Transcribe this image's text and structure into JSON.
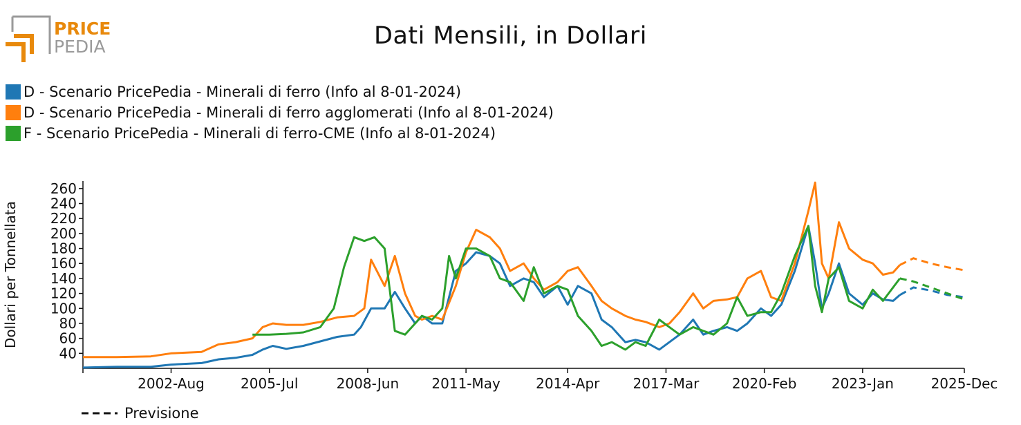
{
  "header": {
    "logo_top": "PRICE",
    "logo_bottom": "PEDIA",
    "title": "Dati Mensili, in Dollari"
  },
  "colors": {
    "s1": "#1f77b4",
    "s2": "#ff7f0e",
    "s3": "#2ca02c",
    "logo_orange": "#e8890c",
    "logo_gray": "#9a9a9a"
  },
  "legend": [
    {
      "label": "D - Scenario PricePedia - Minerali di ferro (Info al 8-01-2024)",
      "color": "#1f77b4"
    },
    {
      "label": "D - Scenario PricePedia - Minerali di ferro agglomerati (Info al 8-01-2024)",
      "color": "#ff7f0e"
    },
    {
      "label": "F - Scenario PricePedia - Minerali di ferro-CME (Info al 8-01-2024)",
      "color": "#2ca02c"
    }
  ],
  "forecast_label": "Previsione",
  "chart_data": {
    "type": "line",
    "title": "Dati Mensili, in Dollari",
    "ylabel": "Dollari per Tonnellata",
    "xlabel": "",
    "ylim": [
      20,
      270
    ],
    "xlim": [
      2000.0,
      2026.0
    ],
    "yticks": [
      40,
      60,
      80,
      100,
      120,
      140,
      160,
      180,
      200,
      220,
      240,
      260
    ],
    "xticks": [
      {
        "label": "2002-Aug",
        "x": 2002.6
      },
      {
        "label": "2005-Jul",
        "x": 2005.5
      },
      {
        "label": "2008-Jun",
        "x": 2008.4
      },
      {
        "label": "2011-May",
        "x": 2011.3
      },
      {
        "label": "2014-Apr",
        "x": 2014.3
      },
      {
        "label": "2017-Mar",
        "x": 2017.2
      },
      {
        "label": "2020-Feb",
        "x": 2020.1
      },
      {
        "label": "2023-Jan",
        "x": 2023.0
      },
      {
        "label": "2025-Dec",
        "x": 2026.0
      }
    ],
    "series": [
      {
        "name": "D - Scenario PricePedia - Minerali di ferro (Info al 8-01-2024)",
        "color": "#1f77b4",
        "points": [
          [
            2000.0,
            21
          ],
          [
            2001.0,
            22
          ],
          [
            2002.0,
            22
          ],
          [
            2002.6,
            25
          ],
          [
            2003.5,
            27
          ],
          [
            2004.0,
            32
          ],
          [
            2004.5,
            34
          ],
          [
            2005.0,
            38
          ],
          [
            2005.3,
            45
          ],
          [
            2005.6,
            50
          ],
          [
            2006.0,
            46
          ],
          [
            2006.5,
            50
          ],
          [
            2007.0,
            56
          ],
          [
            2007.5,
            62
          ],
          [
            2008.0,
            65
          ],
          [
            2008.2,
            75
          ],
          [
            2008.5,
            100
          ],
          [
            2008.9,
            100
          ],
          [
            2009.2,
            122
          ],
          [
            2009.5,
            100
          ],
          [
            2009.8,
            80
          ],
          [
            2010.0,
            90
          ],
          [
            2010.3,
            80
          ],
          [
            2010.6,
            80
          ],
          [
            2011.0,
            150
          ],
          [
            2011.3,
            160
          ],
          [
            2011.6,
            175
          ],
          [
            2012.0,
            170
          ],
          [
            2012.3,
            160
          ],
          [
            2012.6,
            130
          ],
          [
            2013.0,
            140
          ],
          [
            2013.3,
            135
          ],
          [
            2013.6,
            115
          ],
          [
            2014.0,
            130
          ],
          [
            2014.3,
            105
          ],
          [
            2014.6,
            130
          ],
          [
            2015.0,
            120
          ],
          [
            2015.3,
            85
          ],
          [
            2015.6,
            75
          ],
          [
            2016.0,
            55
          ],
          [
            2016.3,
            58
          ],
          [
            2016.6,
            55
          ],
          [
            2017.0,
            45
          ],
          [
            2017.3,
            55
          ],
          [
            2017.6,
            65
          ],
          [
            2018.0,
            85
          ],
          [
            2018.3,
            65
          ],
          [
            2018.6,
            70
          ],
          [
            2019.0,
            75
          ],
          [
            2019.3,
            70
          ],
          [
            2019.6,
            80
          ],
          [
            2020.0,
            100
          ],
          [
            2020.3,
            90
          ],
          [
            2020.6,
            105
          ],
          [
            2021.0,
            150
          ],
          [
            2021.4,
            210
          ],
          [
            2021.6,
            160
          ],
          [
            2021.8,
            100
          ],
          [
            2022.0,
            120
          ],
          [
            2022.3,
            160
          ],
          [
            2022.6,
            120
          ],
          [
            2023.0,
            105
          ],
          [
            2023.3,
            120
          ],
          [
            2023.6,
            112
          ],
          [
            2023.9,
            110
          ],
          [
            2024.1,
            118
          ]
        ],
        "forecast": [
          [
            2024.1,
            118
          ],
          [
            2024.5,
            128
          ],
          [
            2025.0,
            124
          ],
          [
            2025.5,
            118
          ],
          [
            2026.0,
            115
          ]
        ]
      },
      {
        "name": "D - Scenario PricePedia - Minerali di ferro agglomerati (Info al 8-01-2024)",
        "color": "#ff7f0e",
        "points": [
          [
            2000.0,
            35
          ],
          [
            2001.0,
            35
          ],
          [
            2002.0,
            36
          ],
          [
            2002.6,
            40
          ],
          [
            2003.5,
            42
          ],
          [
            2004.0,
            52
          ],
          [
            2004.5,
            55
          ],
          [
            2005.0,
            60
          ],
          [
            2005.3,
            75
          ],
          [
            2005.6,
            80
          ],
          [
            2006.0,
            78
          ],
          [
            2006.5,
            78
          ],
          [
            2007.0,
            82
          ],
          [
            2007.5,
            88
          ],
          [
            2008.0,
            90
          ],
          [
            2008.3,
            100
          ],
          [
            2008.5,
            165
          ],
          [
            2008.9,
            130
          ],
          [
            2009.2,
            170
          ],
          [
            2009.5,
            120
          ],
          [
            2009.8,
            90
          ],
          [
            2010.0,
            85
          ],
          [
            2010.3,
            90
          ],
          [
            2010.6,
            85
          ],
          [
            2011.0,
            130
          ],
          [
            2011.3,
            175
          ],
          [
            2011.6,
            205
          ],
          [
            2012.0,
            195
          ],
          [
            2012.3,
            180
          ],
          [
            2012.6,
            150
          ],
          [
            2013.0,
            160
          ],
          [
            2013.3,
            140
          ],
          [
            2013.6,
            125
          ],
          [
            2014.0,
            135
          ],
          [
            2014.3,
            150
          ],
          [
            2014.6,
            155
          ],
          [
            2015.0,
            130
          ],
          [
            2015.3,
            110
          ],
          [
            2015.6,
            100
          ],
          [
            2016.0,
            90
          ],
          [
            2016.3,
            85
          ],
          [
            2016.6,
            82
          ],
          [
            2017.0,
            75
          ],
          [
            2017.3,
            80
          ],
          [
            2017.6,
            95
          ],
          [
            2018.0,
            120
          ],
          [
            2018.3,
            100
          ],
          [
            2018.6,
            110
          ],
          [
            2019.0,
            112
          ],
          [
            2019.3,
            115
          ],
          [
            2019.6,
            140
          ],
          [
            2020.0,
            150
          ],
          [
            2020.3,
            115
          ],
          [
            2020.6,
            110
          ],
          [
            2021.0,
            160
          ],
          [
            2021.4,
            230
          ],
          [
            2021.6,
            268
          ],
          [
            2021.8,
            160
          ],
          [
            2022.0,
            140
          ],
          [
            2022.3,
            215
          ],
          [
            2022.6,
            180
          ],
          [
            2023.0,
            165
          ],
          [
            2023.3,
            160
          ],
          [
            2023.6,
            145
          ],
          [
            2023.9,
            148
          ],
          [
            2024.1,
            158
          ]
        ],
        "forecast": [
          [
            2024.1,
            158
          ],
          [
            2024.5,
            167
          ],
          [
            2025.0,
            160
          ],
          [
            2025.5,
            155
          ],
          [
            2026.0,
            151
          ]
        ]
      },
      {
        "name": "F - Scenario PricePedia - Minerali di ferro-CME (Info al 8-01-2024)",
        "color": "#2ca02c",
        "points": [
          [
            2005.0,
            65
          ],
          [
            2005.5,
            65
          ],
          [
            2006.0,
            66
          ],
          [
            2006.5,
            68
          ],
          [
            2007.0,
            75
          ],
          [
            2007.4,
            100
          ],
          [
            2007.7,
            155
          ],
          [
            2008.0,
            195
          ],
          [
            2008.3,
            190
          ],
          [
            2008.6,
            195
          ],
          [
            2008.9,
            180
          ],
          [
            2009.2,
            70
          ],
          [
            2009.5,
            65
          ],
          [
            2009.8,
            80
          ],
          [
            2010.0,
            90
          ],
          [
            2010.3,
            85
          ],
          [
            2010.6,
            100
          ],
          [
            2010.8,
            170
          ],
          [
            2011.0,
            140
          ],
          [
            2011.3,
            180
          ],
          [
            2011.6,
            180
          ],
          [
            2012.0,
            170
          ],
          [
            2012.3,
            140
          ],
          [
            2012.6,
            135
          ],
          [
            2013.0,
            110
          ],
          [
            2013.3,
            155
          ],
          [
            2013.6,
            120
          ],
          [
            2014.0,
            130
          ],
          [
            2014.3,
            125
          ],
          [
            2014.6,
            90
          ],
          [
            2015.0,
            70
          ],
          [
            2015.3,
            50
          ],
          [
            2015.6,
            55
          ],
          [
            2016.0,
            45
          ],
          [
            2016.3,
            55
          ],
          [
            2016.6,
            50
          ],
          [
            2017.0,
            85
          ],
          [
            2017.3,
            75
          ],
          [
            2017.6,
            65
          ],
          [
            2018.0,
            75
          ],
          [
            2018.3,
            70
          ],
          [
            2018.6,
            65
          ],
          [
            2019.0,
            80
          ],
          [
            2019.3,
            115
          ],
          [
            2019.6,
            90
          ],
          [
            2020.0,
            95
          ],
          [
            2020.3,
            95
          ],
          [
            2020.6,
            120
          ],
          [
            2021.0,
            170
          ],
          [
            2021.4,
            210
          ],
          [
            2021.6,
            130
          ],
          [
            2021.8,
            95
          ],
          [
            2022.0,
            140
          ],
          [
            2022.3,
            155
          ],
          [
            2022.6,
            110
          ],
          [
            2023.0,
            100
          ],
          [
            2023.3,
            125
          ],
          [
            2023.6,
            110
          ],
          [
            2023.9,
            128
          ],
          [
            2024.1,
            140
          ]
        ],
        "forecast": [
          [
            2024.1,
            140
          ],
          [
            2024.5,
            136
          ],
          [
            2025.0,
            128
          ],
          [
            2025.5,
            120
          ],
          [
            2026.0,
            112
          ]
        ]
      }
    ]
  }
}
